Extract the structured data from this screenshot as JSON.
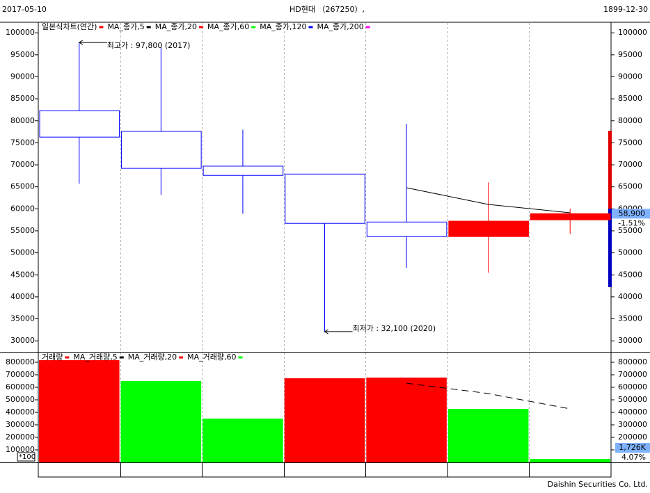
{
  "header": {
    "date_left": "2017-05-10",
    "title": "HD현대 （267250）,",
    "date_right": "1899-12-30"
  },
  "footer": "Daishin Securities Co. Ltd.",
  "chart_data": [
    {
      "type": "candlestick",
      "ylim": [
        27500,
        102400
      ],
      "yticks": [
        30000,
        35000,
        40000,
        45000,
        50000,
        55000,
        60000,
        65000,
        70000,
        75000,
        80000,
        85000,
        90000,
        95000,
        100000
      ],
      "series": [
        {
          "name": "일본식차트(연간)",
          "color": "#ff0000",
          "down_color": "#0000ff",
          "open": [
            82300,
            77600,
            69700,
            67900,
            57000,
            53700,
            57500
          ],
          "high": [
            97800,
            96700,
            78000,
            67900,
            79300,
            66000,
            60000
          ],
          "low": [
            65700,
            63200,
            58900,
            32100,
            46600,
            45500,
            54300
          ],
          "close": [
            76300,
            69200,
            67600,
            56700,
            53700,
            57200,
            58900
          ]
        },
        {
          "name": "MA_종가,5",
          "color": "#000000",
          "values": [
            null,
            null,
            null,
            null,
            64800,
            61000,
            59100
          ]
        },
        {
          "name": "MA_종가,20",
          "color": "#ff0000"
        },
        {
          "name": "MA_종가,60",
          "color": "#00ff00"
        },
        {
          "name": "MA_종가,120",
          "color": "#0000ff"
        },
        {
          "name": "MA_종가,200",
          "color": "#ff00ff"
        }
      ],
      "high_label": "최고가 : 97,800 (2017)",
      "low_label": "최저가 : 32,100 (2020)",
      "last_label": "58,900",
      "change_label": "-1.51%"
    },
    {
      "type": "bar",
      "ylim": [
        0,
        877800
      ],
      "yticks": [
        100000,
        200000,
        300000,
        400000,
        500000,
        600000,
        700000,
        800000
      ],
      "series": [
        {
          "name": "거래량",
          "color": "#ff0000",
          "values": [
            816700,
            650000,
            350000,
            672000,
            677800,
            427800,
            27800
          ],
          "colors": [
            "#ff0000",
            "#00ff00",
            "#00ff00",
            "#ff0000",
            "#ff0000",
            "#00ff00",
            "#00ff00"
          ]
        },
        {
          "name": "MA_거래량,5",
          "color": "#000000",
          "values": [
            null,
            null,
            null,
            null,
            633000,
            550000,
            427800
          ]
        },
        {
          "name": "MA_거래량,20",
          "color": "#ff0000"
        },
        {
          "name": "MA_거래량,60",
          "color": "#00ff00"
        }
      ],
      "unit_label": "*100",
      "last_label": "1,726K",
      "change_label": "4.07%"
    }
  ]
}
